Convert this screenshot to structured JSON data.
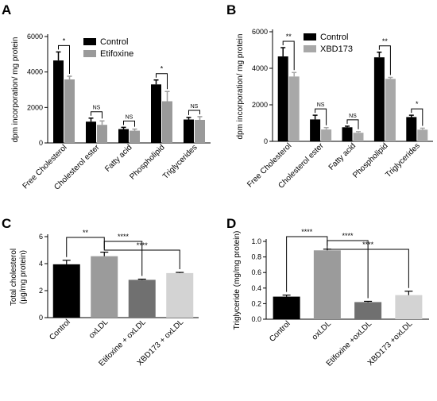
{
  "chart_data": [
    {
      "panel": "A",
      "type": "bar",
      "ylabel": "dpm incorporation/ mg protein",
      "ylim": [
        0,
        6000
      ],
      "yticks": [
        0,
        2000,
        4000,
        6000
      ],
      "categories": [
        "Free Cholesterol",
        "Cholesterol ester",
        "Fatty acid",
        "Phospholipid",
        "Triglycerides"
      ],
      "series": [
        {
          "name": "Control",
          "color": "#000000",
          "values": [
            4650,
            1200,
            780,
            3300,
            1320
          ],
          "errors": [
            480,
            200,
            100,
            250,
            120
          ]
        },
        {
          "name": "Etifoxine",
          "color": "#9a9a9a",
          "values": [
            3580,
            1020,
            690,
            2350,
            1300
          ],
          "errors": [
            180,
            220,
            90,
            550,
            180
          ]
        }
      ],
      "significance": [
        "*",
        "NS",
        "NS",
        "*",
        "NS"
      ],
      "legend": "top-right"
    },
    {
      "panel": "B",
      "type": "bar",
      "ylabel": "dpm incorporation/ mg protein",
      "ylim": [
        0,
        6000
      ],
      "yticks": [
        0,
        2000,
        4000,
        6000
      ],
      "categories": [
        "Free Cholesterol",
        "Cholesterol ester",
        "Fatty acid",
        "Phospholipid",
        "Triglycerides"
      ],
      "series": [
        {
          "name": "Control",
          "color": "#000000",
          "values": [
            4650,
            1200,
            770,
            4600,
            1330
          ],
          "errors": [
            480,
            230,
            60,
            280,
            100
          ]
        },
        {
          "name": "XBD173",
          "color": "#a8a8a8",
          "values": [
            3550,
            650,
            470,
            3420,
            640
          ],
          "errors": [
            220,
            100,
            60,
            80,
            80
          ]
        }
      ],
      "significance": [
        "**",
        "NS",
        "NS",
        "**",
        "*"
      ],
      "legend": "top-right"
    },
    {
      "panel": "C",
      "type": "bar",
      "ylabel": [
        "Total cholesterol",
        "(µg/mg protein)"
      ],
      "ylim": [
        0,
        6
      ],
      "yticks": [
        0,
        2,
        4,
        6
      ],
      "categories": [
        "Control",
        "oxLDL",
        "Etifoxine + oxLDL",
        "XBD173 + oxLDL"
      ],
      "values": [
        3.95,
        4.55,
        2.8,
        3.3
      ],
      "errors": [
        0.3,
        0.3,
        0.05,
        0.05
      ],
      "colors": [
        "#000000",
        "#9b9b9b",
        "#707070",
        "#d3d3d3"
      ],
      "comparisons": [
        {
          "from": 0,
          "to": 1,
          "label": "**"
        },
        {
          "from": 1,
          "to": 2,
          "label": "****"
        },
        {
          "from": 1,
          "to": 3,
          "label": "****"
        }
      ]
    },
    {
      "panel": "D",
      "type": "bar",
      "ylabel": "Triglyceride (mg/mg protein)",
      "ylim": [
        0,
        1.0
      ],
      "yticks": [
        0.0,
        0.2,
        0.4,
        0.6,
        0.8,
        1.0
      ],
      "categories": [
        "Control",
        "oxLDL",
        "Etifoxine +oxLDL",
        "XBD173 +oxLDL"
      ],
      "values": [
        0.29,
        0.885,
        0.22,
        0.31
      ],
      "errors": [
        0.02,
        0.015,
        0.01,
        0.05
      ],
      "colors": [
        "#000000",
        "#9b9b9b",
        "#707070",
        "#d3d3d3"
      ],
      "comparisons": [
        {
          "from": 0,
          "to": 1,
          "label": "****"
        },
        {
          "from": 1,
          "to": 2,
          "label": "****"
        },
        {
          "from": 1,
          "to": 3,
          "label": "****"
        }
      ]
    }
  ]
}
